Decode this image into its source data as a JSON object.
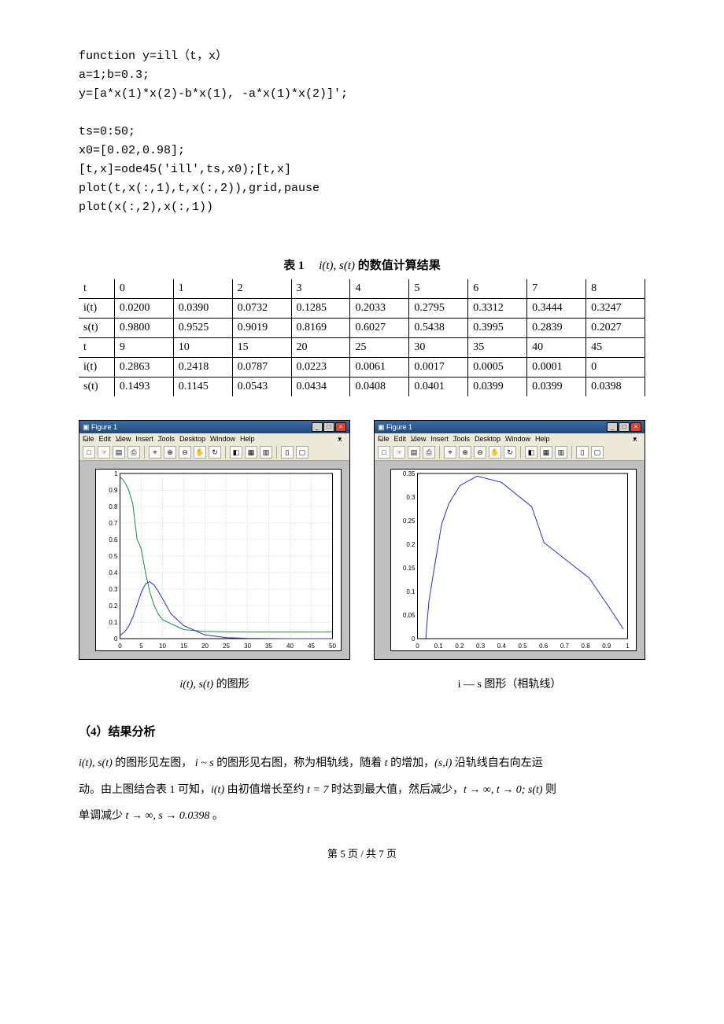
{
  "code": {
    "lines": [
      "function y=ill（t，x）",
      "a=1;b=0.3;",
      "y=[a*x(1)*x(2)-b*x(1), -a*x(1)*x(2)]';",
      "",
      "ts=0:50;",
      "x0=[0.02,0.98];",
      "[t,x]=ode45('ill',ts,x0);[t,x]",
      "plot(t,x(:,1),t,x(:,2)),grid,pause",
      "plot(x(:,2),x(:,1))"
    ]
  },
  "table_title": {
    "label": "表 1",
    "func": "i(t), s(t)",
    "suffix": "的数值计算结果"
  },
  "table": {
    "rows": [
      [
        "t",
        "0",
        "1",
        "2",
        "3",
        "4",
        "5",
        "6",
        "7",
        "8"
      ],
      [
        "i(t)",
        "0.0200",
        "0.0390",
        "0.0732",
        "0.1285",
        "0.2033",
        "0.2795",
        "0.3312",
        "0.3444",
        "0.3247"
      ],
      [
        "s(t)",
        "0.9800",
        "0.9525",
        "0.9019",
        "0.8169",
        "0.6027",
        "0.5438",
        "0.3995",
        "0.2839",
        "0.2027"
      ],
      [
        "t",
        "9",
        "10",
        "15",
        "20",
        "25",
        "30",
        "35",
        "40",
        "45"
      ],
      [
        "i(t)",
        "0.2863",
        "0.2418",
        "0.0787",
        "0.0223",
        "0.0061",
        "0.0017",
        "0.0005",
        "0.0001",
        "0"
      ],
      [
        "s(t)",
        "0.1493",
        "0.1145",
        "0.0543",
        "0.0434",
        "0.0408",
        "0.0401",
        "0.0399",
        "0.0399",
        "0.0398"
      ]
    ]
  },
  "figure_window": {
    "title": "Figure 1",
    "menus": [
      "File",
      "Edit",
      "View",
      "Insert",
      "Tools",
      "Desktop",
      "Window",
      "Help"
    ],
    "toolbar_icons": [
      "□",
      "☞",
      "▤",
      "⎙",
      "|",
      "⌖",
      "⊕",
      "⊖",
      "✋",
      "↻",
      "|",
      "◧",
      "▦",
      "▥",
      "|",
      "▯",
      "▢"
    ],
    "bg_color": "#c0c0c0",
    "grid_color": "#d0d0d0",
    "line_blue": "#2030d0",
    "line_green": "#109040"
  },
  "chart_left": {
    "xlim": [
      0,
      50
    ],
    "ylim": [
      0,
      1
    ],
    "xticks": [
      0,
      5,
      10,
      15,
      20,
      25,
      30,
      35,
      40,
      45,
      50
    ],
    "yticks": [
      0,
      0.1,
      0.2,
      0.3,
      0.4,
      0.5,
      0.6,
      0.7,
      0.8,
      0.9,
      1
    ],
    "series_i": [
      [
        0,
        0.02
      ],
      [
        1,
        0.039
      ],
      [
        2,
        0.0732
      ],
      [
        3,
        0.1285
      ],
      [
        4,
        0.2033
      ],
      [
        5,
        0.2795
      ],
      [
        6,
        0.3312
      ],
      [
        7,
        0.3444
      ],
      [
        8,
        0.3247
      ],
      [
        9,
        0.2863
      ],
      [
        10,
        0.2418
      ],
      [
        12,
        0.15
      ],
      [
        15,
        0.0787
      ],
      [
        20,
        0.0223
      ],
      [
        25,
        0.0061
      ],
      [
        30,
        0.0017
      ],
      [
        35,
        0.0005
      ],
      [
        40,
        0.0001
      ],
      [
        45,
        0
      ],
      [
        50,
        0
      ]
    ],
    "series_s": [
      [
        0,
        0.98
      ],
      [
        1,
        0.9525
      ],
      [
        2,
        0.9019
      ],
      [
        3,
        0.8169
      ],
      [
        4,
        0.6027
      ],
      [
        5,
        0.5438
      ],
      [
        6,
        0.3995
      ],
      [
        7,
        0.2839
      ],
      [
        8,
        0.2027
      ],
      [
        9,
        0.1493
      ],
      [
        10,
        0.1145
      ],
      [
        15,
        0.0543
      ],
      [
        20,
        0.0434
      ],
      [
        25,
        0.0408
      ],
      [
        30,
        0.0401
      ],
      [
        35,
        0.0399
      ],
      [
        40,
        0.0399
      ],
      [
        45,
        0.0398
      ],
      [
        50,
        0.0398
      ]
    ]
  },
  "chart_right": {
    "xlim": [
      0,
      1
    ],
    "ylim": [
      0,
      0.35
    ],
    "xticks": [
      0,
      0.1,
      0.2,
      0.3,
      0.4,
      0.5,
      0.6,
      0.7,
      0.8,
      0.9,
      1
    ],
    "yticks": [
      0,
      0.05,
      0.1,
      0.15,
      0.2,
      0.25,
      0.3,
      0.35
    ],
    "series": [
      [
        0.98,
        0.02
      ],
      [
        0.9525,
        0.039
      ],
      [
        0.9019,
        0.0732
      ],
      [
        0.8169,
        0.1285
      ],
      [
        0.6027,
        0.2033
      ],
      [
        0.5438,
        0.2795
      ],
      [
        0.3995,
        0.3312
      ],
      [
        0.2839,
        0.3444
      ],
      [
        0.2027,
        0.3247
      ],
      [
        0.1493,
        0.2863
      ],
      [
        0.1145,
        0.2418
      ],
      [
        0.08,
        0.15
      ],
      [
        0.0543,
        0.0787
      ],
      [
        0.0434,
        0.0223
      ],
      [
        0.0408,
        0.0061
      ],
      [
        0.0401,
        0.0017
      ],
      [
        0.0399,
        0.0005
      ],
      [
        0.0399,
        0.0001
      ],
      [
        0.0398,
        0
      ]
    ]
  },
  "captions": {
    "left_math": "i(t), s(t)",
    "left_txt": " 的图形",
    "right": "i — s 图形（相轨线）"
  },
  "section4_head": "（4）结果分析",
  "analysis": {
    "p1a": "i(t), s(t)",
    "p1b": " 的图形见左图，    ",
    "p1c": "i ~ s",
    "p1d": " 的图形见右图，称为相轨线，随着 ",
    "p1e": "t",
    "p1f": " 的增加，",
    "p1g": "(s,i)",
    "p1h": " 沿轨线自右向左运",
    "p2a": "动。由上图结合表 1 可知，",
    "p2b": "i(t)",
    "p2c": " 由初值增长至约 ",
    "p2d": "t = 7",
    "p2e": " 时达到最大值，然后减少，",
    "p2f": "t → ∞, t → 0; s(t)",
    "p2g": " 则",
    "p3a": "单调减少 ",
    "p3b": "t → ∞, s → 0.0398",
    "p3c": " 。"
  },
  "footer": "第 5 页 / 共 7 页"
}
